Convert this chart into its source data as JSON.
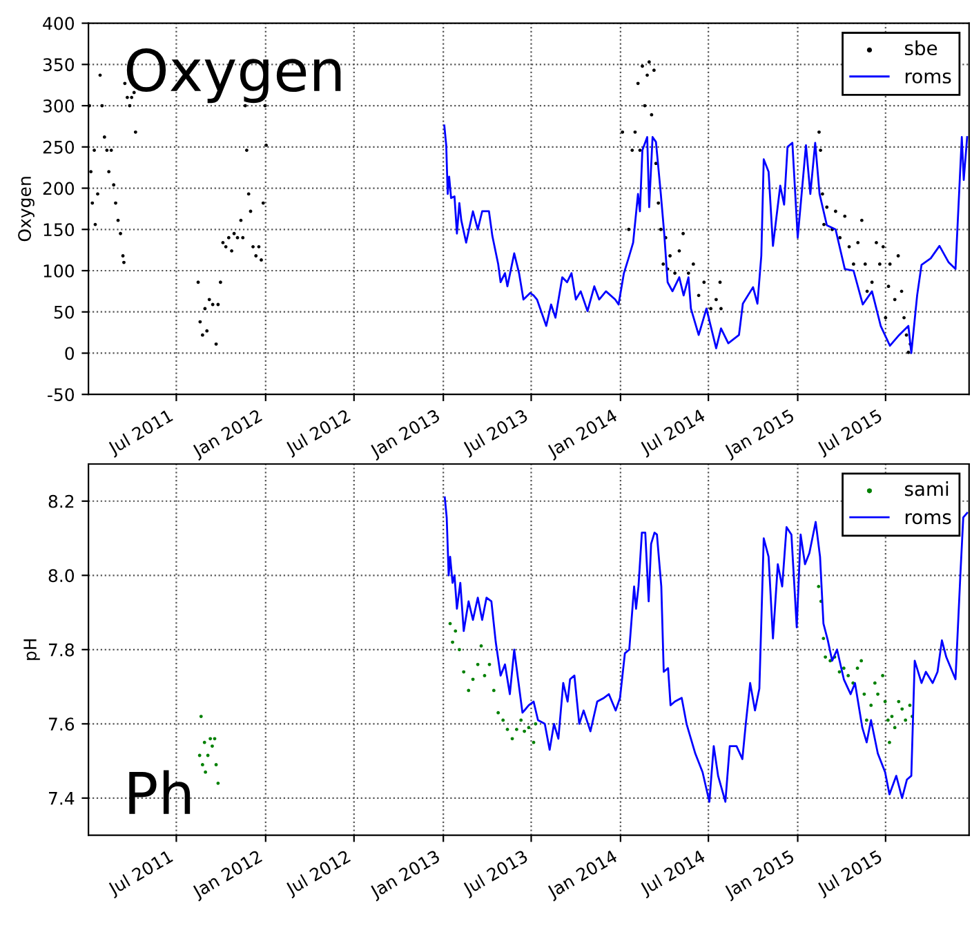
{
  "chart_data": [
    {
      "type": "line",
      "ylabel": "Oxygen",
      "annotations": [
        "Oxygen"
      ],
      "xlim": [
        "2011-01-01",
        "2015-12-20"
      ],
      "ylim": [
        -50,
        400
      ],
      "yticks": [
        -50,
        0,
        50,
        100,
        150,
        200,
        250,
        300,
        350,
        400
      ],
      "xticks": [
        {
          "value": "2011-07-01",
          "label": "Jul 2011"
        },
        {
          "value": "2012-01-01",
          "label": "Jan 2012"
        },
        {
          "value": "2012-07-01",
          "label": "Jul 2012"
        },
        {
          "value": "2013-01-01",
          "label": "Jan 2013"
        },
        {
          "value": "2013-07-01",
          "label": "Jul 2013"
        },
        {
          "value": "2014-01-01",
          "label": "Jan 2014"
        },
        {
          "value": "2014-07-01",
          "label": "Jul 2014"
        },
        {
          "value": "2015-01-01",
          "label": "Jan 2015"
        },
        {
          "value": "2015-07-01",
          "label": "Jul 2015"
        }
      ],
      "grid": true,
      "legend": "top right",
      "series": [
        {
          "name": "sbe",
          "type": "scatter",
          "marker": "circle",
          "color": "#000000",
          "x": [
            "2011-01-03",
            "2011-01-06",
            "2011-01-09",
            "2011-01-13",
            "2011-01-15",
            "2011-01-20",
            "2011-01-25",
            "2011-01-29",
            "2011-02-03",
            "2011-02-08",
            "2011-02-12",
            "2011-02-17",
            "2011-02-22",
            "2011-02-26",
            "2011-03-03",
            "2011-03-08",
            "2011-03-13",
            "2011-03-15",
            "2011-03-17",
            "2011-03-22",
            "2011-03-27",
            "2011-03-31",
            "2011-04-05",
            "2011-04-08",
            "2011-08-15",
            "2011-08-19",
            "2011-08-24",
            "2011-08-29",
            "2011-09-02",
            "2011-09-07",
            "2011-09-14",
            "2011-09-21",
            "2011-09-25",
            "2011-09-30",
            "2011-10-05",
            "2011-10-11",
            "2011-10-17",
            "2011-10-23",
            "2011-10-28",
            "2011-11-04",
            "2011-11-11",
            "2011-11-15",
            "2011-11-20",
            "2011-11-23",
            "2011-11-27",
            "2011-12-01",
            "2011-12-06",
            "2011-12-12",
            "2011-12-18",
            "2011-12-23",
            "2011-12-27",
            "2011-12-31",
            "2012-01-02",
            "2014-01-05",
            "2014-01-18",
            "2014-01-25",
            "2014-01-31",
            "2014-02-06",
            "2014-02-10",
            "2014-02-15",
            "2014-02-20",
            "2014-02-25",
            "2014-03-01",
            "2014-03-06",
            "2014-03-11",
            "2014-03-15",
            "2014-03-20",
            "2014-03-25",
            "2014-03-30",
            "2014-04-04",
            "2014-04-08",
            "2014-04-13",
            "2014-04-23",
            "2014-05-02",
            "2014-05-10",
            "2014-05-21",
            "2014-05-31",
            "2014-06-11",
            "2014-06-22",
            "2014-07-06",
            "2014-07-17",
            "2014-07-25",
            "2014-07-27",
            "2015-02-14",
            "2015-02-17",
            "2015-02-21",
            "2015-02-24",
            "2015-03-02",
            "2015-03-13",
            "2015-03-20",
            "2015-03-29",
            "2015-04-08",
            "2015-04-17",
            "2015-04-26",
            "2015-05-05",
            "2015-05-13",
            "2015-05-20",
            "2015-05-24",
            "2015-06-03",
            "2015-06-12",
            "2015-06-19",
            "2015-06-26",
            "2015-07-01",
            "2015-07-07",
            "2015-07-10",
            "2015-07-20",
            "2015-07-27",
            "2015-08-03",
            "2015-08-08",
            "2015-08-13",
            "2015-08-17",
            "2015-08-21"
          ],
          "values": [
            300,
            220,
            182,
            246,
            156,
            193,
            337,
            300,
            262,
            246,
            220,
            246,
            204,
            182,
            161,
            145,
            118,
            110,
            327,
            310,
            300,
            310,
            316,
            268,
            86,
            38,
            22,
            54,
            27,
            65,
            59,
            11,
            59,
            86,
            134,
            129,
            140,
            124,
            145,
            140,
            161,
            140,
            300,
            246,
            193,
            172,
            129,
            118,
            129,
            113,
            182,
            300,
            252,
            268,
            150,
            246,
            268,
            327,
            246,
            348,
            300,
            337,
            353,
            289,
            343,
            230,
            182,
            150,
            108,
            140,
            102,
            118,
            97,
            124,
            145,
            97,
            108,
            70,
            86,
            54,
            65,
            86,
            54,
            268,
            246,
            193,
            156,
            177,
            150,
            172,
            140,
            166,
            129,
            108,
            134,
            161,
            108,
            75,
            86,
            134,
            108,
            129,
            43,
            81,
            108,
            65,
            118,
            75,
            43,
            22,
            1,
            11
          ]
        },
        {
          "name": "roms",
          "type": "line",
          "marker": "none",
          "line_style": "solid",
          "color": "#0000ff",
          "x": [
            "2013-01-03",
            "2013-01-07",
            "2013-01-10",
            "2013-01-13",
            "2013-01-17",
            "2013-01-24",
            "2013-01-29",
            "2013-02-03",
            "2013-02-07",
            "2013-02-17",
            "2013-03-03",
            "2013-03-13",
            "2013-03-22",
            "2013-04-05",
            "2013-04-12",
            "2013-04-24",
            "2013-04-29",
            "2013-05-08",
            "2013-05-13",
            "2013-05-27",
            "2013-06-06",
            "2013-06-15",
            "2013-06-29",
            "2013-07-06",
            "2013-07-13",
            "2013-08-01",
            "2013-08-11",
            "2013-08-20",
            "2013-09-03",
            "2013-09-13",
            "2013-09-22",
            "2013-10-01",
            "2013-10-11",
            "2013-10-25",
            "2013-11-08",
            "2013-11-18",
            "2013-12-02",
            "2013-12-21",
            "2013-12-28",
            "2014-01-08",
            "2014-01-18",
            "2014-01-27",
            "2014-02-06",
            "2014-02-10",
            "2014-02-15",
            "2014-02-25",
            "2014-03-01",
            "2014-03-08",
            "2014-03-15",
            "2014-03-25",
            "2014-04-01",
            "2014-04-08",
            "2014-04-18",
            "2014-05-02",
            "2014-05-11",
            "2014-05-21",
            "2014-05-26",
            "2014-06-11",
            "2014-06-27",
            "2014-07-17",
            "2014-07-27",
            "2014-08-11",
            "2014-09-02",
            "2014-09-10",
            "2014-10-01",
            "2014-10-10",
            "2014-10-18",
            "2014-10-23",
            "2014-11-02",
            "2014-11-11",
            "2014-11-26",
            "2014-12-04",
            "2014-12-11",
            "2014-12-21",
            "2015-01-01",
            "2015-01-18",
            "2015-01-27",
            "2015-02-06",
            "2015-02-15",
            "2015-03-02",
            "2015-03-20",
            "2015-04-08",
            "2015-04-26",
            "2015-05-15",
            "2015-06-03",
            "2015-06-21",
            "2015-07-10",
            "2015-07-29",
            "2015-08-17",
            "2015-08-23",
            "2015-09-04",
            "2015-09-13",
            "2015-10-02",
            "2015-10-20",
            "2015-11-08",
            "2015-11-22",
            "2015-12-05",
            "2015-12-09",
            "2015-12-16"
          ],
          "values": [
            276,
            252,
            193,
            214,
            188,
            190,
            145,
            182,
            161,
            134,
            172,
            150,
            172,
            172,
            142,
            108,
            86,
            97,
            81,
            121,
            97,
            65,
            73,
            70,
            65,
            33,
            59,
            43,
            92,
            86,
            97,
            65,
            75,
            51,
            81,
            65,
            75,
            65,
            59,
            97,
            116,
            134,
            193,
            172,
            246,
            262,
            177,
            262,
            256,
            193,
            145,
            86,
            75,
            92,
            70,
            92,
            54,
            22,
            54,
            6,
            30,
            12,
            22,
            60,
            80,
            60,
            118,
            235,
            220,
            130,
            203,
            180,
            250,
            255,
            140,
            252,
            193,
            255,
            193,
            155,
            150,
            102,
            100,
            59,
            75,
            33,
            9,
            22,
            33,
            0,
            70,
            107,
            115,
            130,
            110,
            102,
            262,
            210,
            262
          ]
        }
      ]
    },
    {
      "type": "line",
      "ylabel": "pH",
      "annotations": [
        "Ph"
      ],
      "xlim": [
        "2011-01-01",
        "2015-12-20"
      ],
      "ylim": [
        7.3,
        8.3
      ],
      "yticks": [
        7.4,
        7.6,
        7.8,
        {
          "value": 8,
          "label": "8.0"
        },
        8.2
      ],
      "xticks": [
        {
          "value": "2011-07-01",
          "label": "Jul 2011"
        },
        {
          "value": "2012-01-01",
          "label": "Jan 2012"
        },
        {
          "value": "2012-07-01",
          "label": "Jul 2012"
        },
        {
          "value": "2013-01-01",
          "label": "Jan 2013"
        },
        {
          "value": "2013-07-01",
          "label": "Jul 2013"
        },
        {
          "value": "2014-01-01",
          "label": "Jan 2014"
        },
        {
          "value": "2014-07-01",
          "label": "Jul 2014"
        },
        {
          "value": "2015-01-01",
          "label": "Jan 2015"
        },
        {
          "value": "2015-07-01",
          "label": "Jul 2015"
        }
      ],
      "grid": true,
      "legend": "top right",
      "series": [
        {
          "name": "sami",
          "type": "scatter",
          "marker": "circle",
          "color": "#008000",
          "x": [
            "2011-08-18",
            "2011-08-21",
            "2011-08-24",
            "2011-08-28",
            "2011-08-30",
            "2011-09-04",
            "2011-09-09",
            "2011-09-13",
            "2011-09-18",
            "2011-09-21",
            "2011-09-25",
            "2013-01-15",
            "2013-01-20",
            "2013-01-26",
            "2013-02-03",
            "2013-02-12",
            "2013-02-22",
            "2013-03-03",
            "2013-03-13",
            "2013-03-20",
            "2013-03-27",
            "2013-04-06",
            "2013-04-15",
            "2013-04-24",
            "2013-05-04",
            "2013-05-13",
            "2013-05-23",
            "2013-06-01",
            "2013-06-10",
            "2013-06-17",
            "2013-06-26",
            "2013-07-06",
            "2013-07-10",
            "2015-02-13",
            "2015-02-18",
            "2015-02-23",
            "2015-02-27",
            "2015-03-09",
            "2015-03-18",
            "2015-03-28",
            "2015-04-06",
            "2015-04-15",
            "2015-04-25",
            "2015-05-04",
            "2015-05-12",
            "2015-05-18",
            "2015-05-23",
            "2015-06-01",
            "2015-06-09",
            "2015-06-15",
            "2015-06-25",
            "2015-06-30",
            "2015-07-06",
            "2015-07-09",
            "2015-07-14",
            "2015-07-20",
            "2015-07-28",
            "2015-08-04",
            "2015-08-11",
            "2015-08-20",
            "2015-08-25"
          ],
          "values": [
            7.515,
            7.62,
            7.49,
            7.55,
            7.47,
            7.515,
            7.56,
            7.54,
            7.56,
            7.49,
            7.44,
            7.87,
            7.82,
            7.85,
            7.8,
            7.74,
            7.69,
            7.72,
            7.76,
            7.81,
            7.73,
            7.76,
            7.69,
            7.63,
            7.61,
            7.585,
            7.56,
            7.585,
            7.61,
            7.58,
            7.59,
            7.55,
            7.6,
            7.97,
            7.93,
            7.83,
            7.78,
            7.77,
            7.78,
            7.74,
            7.75,
            7.73,
            7.71,
            7.75,
            7.77,
            7.68,
            7.61,
            7.65,
            7.71,
            7.68,
            7.73,
            7.66,
            7.61,
            7.55,
            7.62,
            7.59,
            7.66,
            7.64,
            7.61,
            7.65,
            7.62
          ]
        },
        {
          "name": "roms",
          "type": "line",
          "marker": "none",
          "line_style": "solid",
          "color": "#0000ff",
          "x": [
            "2013-01-04",
            "2013-01-08",
            "2013-01-12",
            "2013-01-15",
            "2013-01-20",
            "2013-01-24",
            "2013-01-29",
            "2013-02-05",
            "2013-02-12",
            "2013-02-22",
            "2013-03-03",
            "2013-03-13",
            "2013-03-22",
            "2013-03-31",
            "2013-04-10",
            "2013-04-19",
            "2013-04-29",
            "2013-05-08",
            "2013-05-18",
            "2013-05-27",
            "2013-06-06",
            "2013-06-13",
            "2013-06-17",
            "2013-06-26",
            "2013-07-06",
            "2013-07-15",
            "2013-07-29",
            "2013-08-08",
            "2013-08-17",
            "2013-08-26",
            "2013-09-05",
            "2013-09-14",
            "2013-09-19",
            "2013-09-28",
            "2013-10-08",
            "2013-10-17",
            "2013-10-31",
            "2013-11-14",
            "2013-11-28",
            "2013-12-08",
            "2013-12-22",
            "2013-12-31",
            "2014-01-10",
            "2014-01-19",
            "2014-01-29",
            "2014-02-02",
            "2014-02-07",
            "2014-02-14",
            "2014-02-21",
            "2014-02-28",
            "2014-03-05",
            "2014-03-12",
            "2014-03-17",
            "2014-03-26",
            "2014-03-31",
            "2014-04-09",
            "2014-04-14",
            "2014-04-23",
            "2014-05-07",
            "2014-05-17",
            "2014-05-26",
            "2014-06-04",
            "2014-06-19",
            "2014-07-03",
            "2014-07-12",
            "2014-07-21",
            "2014-08-05",
            "2014-08-14",
            "2014-08-28",
            "2014-09-09",
            "2014-09-16",
            "2014-09-25",
            "2014-10-05",
            "2014-10-14",
            "2014-10-23",
            "2014-11-02",
            "2014-11-11",
            "2014-11-21",
            "2014-11-30",
            "2014-12-09",
            "2014-12-19",
            "2014-12-30",
            "2015-01-07",
            "2015-01-16",
            "2015-01-25",
            "2015-02-07",
            "2015-02-16",
            "2015-02-23",
            "2015-03-04",
            "2015-03-13",
            "2015-03-23",
            "2015-04-06",
            "2015-04-20",
            "2015-04-29",
            "2015-05-14",
            "2015-05-23",
            "2015-06-01",
            "2015-06-15",
            "2015-06-30",
            "2015-07-09",
            "2015-07-23",
            "2015-08-04",
            "2015-08-14",
            "2015-08-23",
            "2015-08-30",
            "2015-09-13",
            "2015-09-22",
            "2015-10-06",
            "2015-10-16",
            "2015-10-25",
            "2015-11-03",
            "2015-11-22",
            "2015-12-02",
            "2015-12-08",
            "2015-12-16"
          ],
          "values": [
            8.21,
            8.155,
            8.0,
            8.05,
            7.98,
            8.0,
            7.91,
            7.98,
            7.85,
            7.93,
            7.88,
            7.94,
            7.88,
            7.94,
            7.93,
            7.82,
            7.73,
            7.76,
            7.68,
            7.8,
            7.7,
            7.63,
            7.636,
            7.65,
            7.66,
            7.61,
            7.6,
            7.53,
            7.6,
            7.56,
            7.71,
            7.66,
            7.72,
            7.73,
            7.6,
            7.636,
            7.58,
            7.66,
            7.67,
            7.68,
            7.636,
            7.67,
            7.79,
            7.8,
            7.97,
            7.91,
            7.97,
            8.115,
            8.115,
            7.93,
            8.085,
            8.115,
            8.11,
            7.97,
            7.74,
            7.75,
            7.65,
            7.66,
            7.67,
            7.6,
            7.56,
            7.52,
            7.47,
            7.39,
            7.54,
            7.46,
            7.39,
            7.54,
            7.54,
            7.505,
            7.6,
            7.71,
            7.636,
            7.695,
            8.1,
            8.05,
            7.83,
            8.03,
            7.97,
            8.13,
            8.11,
            7.86,
            8.11,
            8.03,
            8.06,
            8.144,
            8.05,
            7.87,
            7.825,
            7.77,
            7.8,
            7.72,
            7.68,
            7.71,
            7.59,
            7.55,
            7.61,
            7.52,
            7.47,
            7.41,
            7.46,
            7.4,
            7.45,
            7.46,
            7.77,
            7.71,
            7.74,
            7.71,
            7.74,
            7.825,
            7.78,
            7.72,
            8.0,
            8.156,
            8.168
          ]
        }
      ]
    }
  ]
}
